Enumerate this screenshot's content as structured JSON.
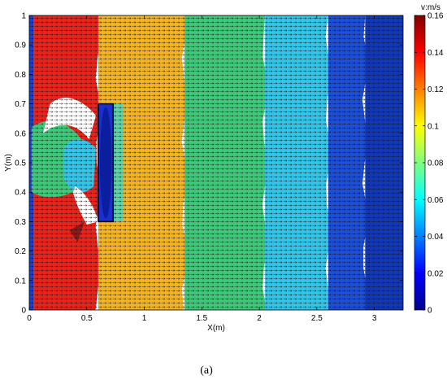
{
  "chart_data": {
    "type": "heatmap",
    "title": "",
    "xlabel": "X(m)",
    "ylabel": "Y(m)",
    "xlim": [
      0,
      3.25
    ],
    "ylim": [
      0,
      1
    ],
    "x_ticks": [
      "0",
      "0.5",
      "1",
      "1.5",
      "2",
      "2.5",
      "3"
    ],
    "x_tick_values": [
      0,
      0.5,
      1,
      1.5,
      2,
      2.5,
      3
    ],
    "y_ticks": [
      "0",
      "0.1",
      "0.2",
      "0.3",
      "0.4",
      "0.5",
      "0.6",
      "0.7",
      "0.8",
      "0.9",
      "1"
    ],
    "y_tick_values": [
      0,
      0.1,
      0.2,
      0.3,
      0.4,
      0.5,
      0.6,
      0.7,
      0.8,
      0.9,
      1
    ],
    "colorbar": {
      "title": "v:m/s",
      "range": [
        0,
        0.16
      ],
      "ticks": [
        "0",
        "0.02",
        "0.04",
        "0.06",
        "0.08",
        "0.1",
        "0.12",
        "0.14",
        "0.16"
      ],
      "tick_values": [
        0,
        0.02,
        0.04,
        0.06,
        0.08,
        0.1,
        0.12,
        0.14,
        0.16
      ],
      "colormap": "jet"
    },
    "bands": [
      {
        "x_start": 0.0,
        "x_end": 0.6,
        "value": 0.145,
        "color": "#e8231c"
      },
      {
        "x_start": 0.6,
        "x_end": 1.35,
        "value": 0.11,
        "color": "#f2b325"
      },
      {
        "x_start": 1.35,
        "x_end": 2.05,
        "value": 0.08,
        "color": "#3fc87a"
      },
      {
        "x_start": 2.05,
        "x_end": 2.6,
        "value": 0.055,
        "color": "#33c5e8"
      },
      {
        "x_start": 2.6,
        "x_end": 2.92,
        "value": 0.025,
        "color": "#1d4ed8"
      },
      {
        "x_start": 2.92,
        "x_end": 3.25,
        "value": 0.015,
        "color": "#1238b8"
      }
    ],
    "obstacle": {
      "x": [
        0.6,
        0.73
      ],
      "y": [
        0.3,
        0.7
      ]
    },
    "grid": false,
    "legend": "colorbar-right"
  },
  "caption": "(a)"
}
